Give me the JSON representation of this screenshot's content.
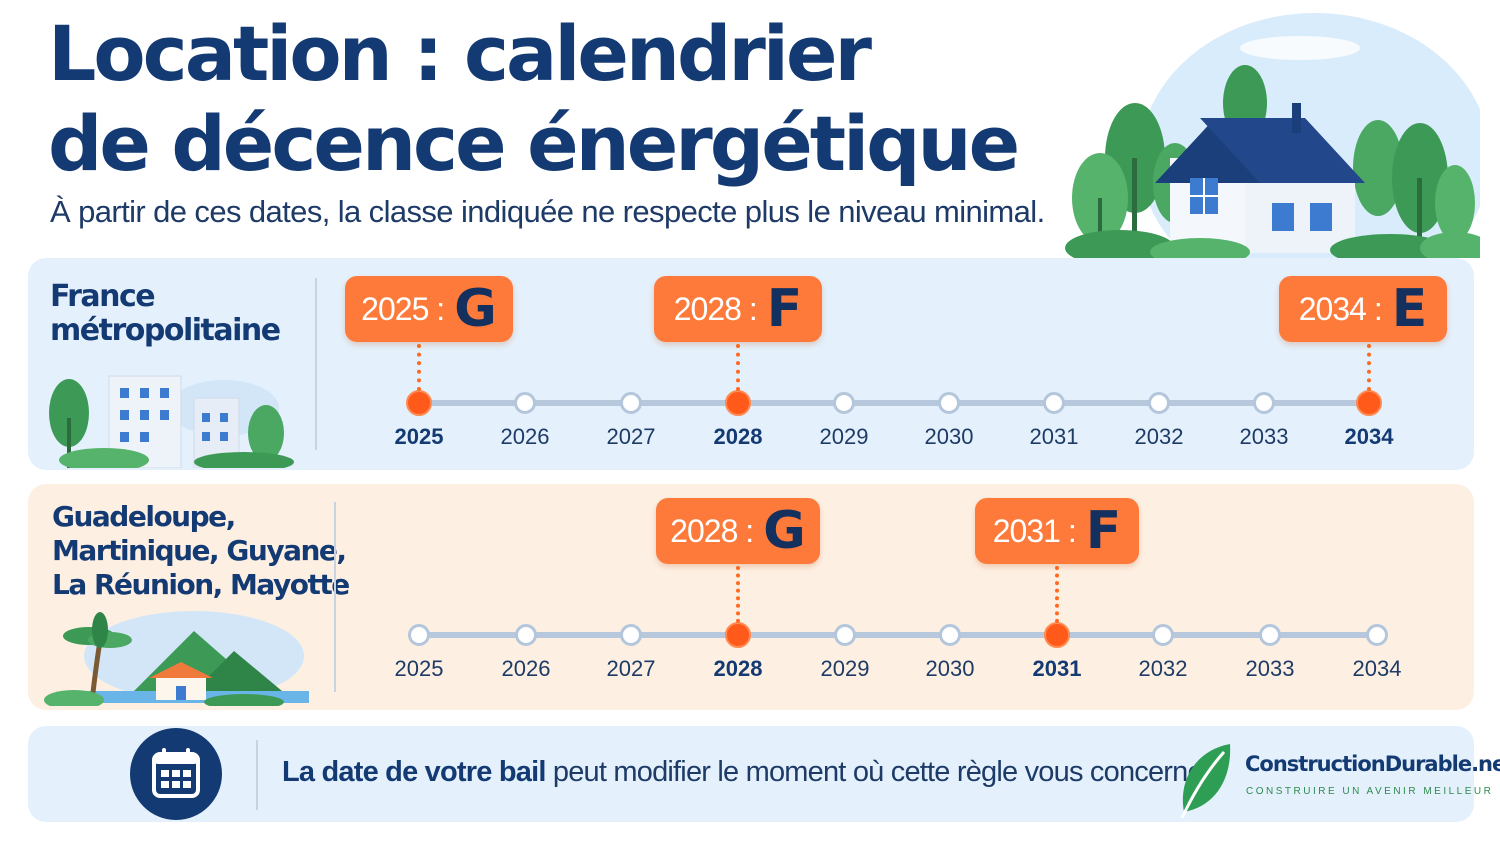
{
  "header": {
    "title_line1": "Location : calendrier",
    "title_line2": "de décence énergétique",
    "subtitle": "À partir de ces dates, la classe indiquée ne respecte plus le niveau minimal."
  },
  "years": [
    "2025",
    "2026",
    "2027",
    "2028",
    "2029",
    "2030",
    "2031",
    "2032",
    "2033",
    "2034"
  ],
  "timelines": [
    {
      "region_line1": "France",
      "region_line2": "métropolitaine",
      "active_years": [
        "2025",
        "2028",
        "2034"
      ],
      "milestones": [
        {
          "year": "2025",
          "year_label": "2025 :",
          "class": "G"
        },
        {
          "year": "2028",
          "year_label": "2028 :",
          "class": "F"
        },
        {
          "year": "2034",
          "year_label": "2034 :",
          "class": "E"
        }
      ]
    },
    {
      "region_line1": "Guadeloupe,",
      "region_line2": "Martinique, Guyane,",
      "region_line3": "La Réunion, Mayotte",
      "active_years": [
        "2028",
        "2031"
      ],
      "milestones": [
        {
          "year": "2028",
          "year_label": "2028 :",
          "class": "G"
        },
        {
          "year": "2031",
          "year_label": "2031 :",
          "class": "F"
        }
      ]
    }
  ],
  "footer": {
    "icon": "calendar-icon",
    "text_bold": "La date de votre bail",
    "text_rest": " peut modifier le moment où cette règle vous concerne.",
    "brand_name": "ConstructionDurable.net",
    "brand_tagline": "CONSTRUIRE UN AVENIR MEILLEUR",
    "brand_icon": "leaf-icon"
  },
  "colors": {
    "navy": "#143a73",
    "orange": "#fe7a3b",
    "active_dot": "#ff5a1a",
    "panel_blue": "#e4f1fc",
    "panel_peach": "#fdf0e3",
    "green": "#2f9e55"
  }
}
